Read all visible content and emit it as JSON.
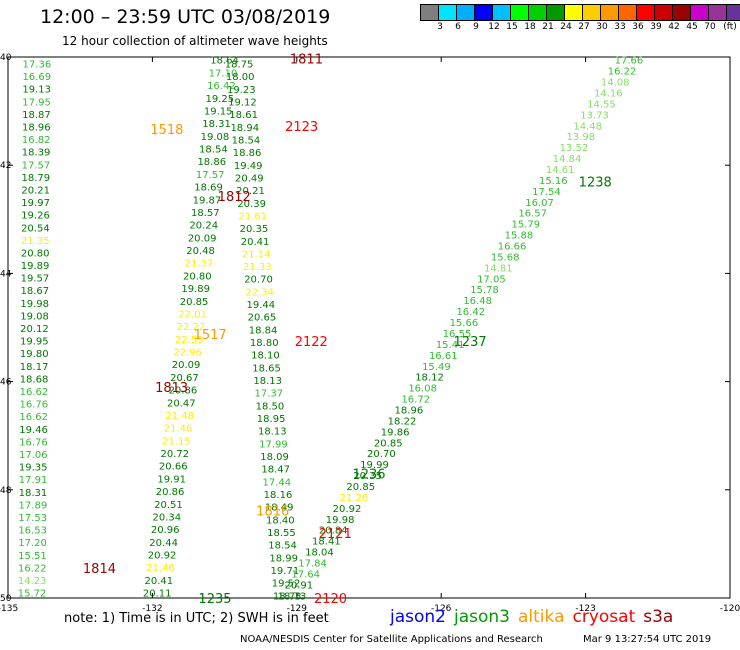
{
  "header": {
    "title": "12:00 – 23:59 UTC 03/08/2019",
    "subtitle": "12 hour collection of altimeter wave heights"
  },
  "colorbar": {
    "unit": "(ft)",
    "swatches": [
      "#7f7f7f",
      "#00e5ff",
      "#00b0ff",
      "#0000ff",
      "#00bfff",
      "#00ff00",
      "#00d000",
      "#009900",
      "#ffff00",
      "#ffcc00",
      "#ff9900",
      "#ff6600",
      "#ff0000",
      "#cc0000",
      "#990000",
      "#cc00cc",
      "#993399",
      "#663399",
      "#000000"
    ],
    "labels": [
      "3",
      "6",
      "9",
      "12",
      "15",
      "18",
      "21",
      "24",
      "27",
      "30",
      "33",
      "36",
      "39",
      "42",
      "45",
      "70"
    ]
  },
  "map": {
    "lon_ticks": [
      "-135",
      "-132",
      "-129",
      "-126",
      "-123",
      "-120"
    ],
    "lat_ticks": [
      "40",
      "42",
      "44",
      "46",
      "48",
      "50"
    ],
    "lon_range": [
      -135,
      -120
    ],
    "lat_range": [
      40,
      50
    ],
    "colors": {
      "green": "#33bb33",
      "darkgreen": "#007700",
      "lightgreen": "#88dd66",
      "yellow": "#ffee00",
      "orange": "#ff9900",
      "red": "#ff0000",
      "darkred": "#990000"
    },
    "track_labels": [
      {
        "text": "1811",
        "lon": -128.8,
        "lat": 40.03,
        "color": "darkred"
      },
      {
        "text": "1518",
        "lon": -131.7,
        "lat": 41.33,
        "color": "orange"
      },
      {
        "text": "2123",
        "lon": -128.9,
        "lat": 41.28,
        "color": "red"
      },
      {
        "text": "1812",
        "lon": -130.3,
        "lat": 42.57,
        "color": "darkred"
      },
      {
        "text": "1238",
        "lon": -122.8,
        "lat": 42.3,
        "color": "darkgreen"
      },
      {
        "text": "1517",
        "lon": -130.8,
        "lat": 45.12,
        "color": "orange"
      },
      {
        "text": "2122",
        "lon": -128.7,
        "lat": 45.25,
        "color": "red"
      },
      {
        "text": "1237",
        "lon": -125.4,
        "lat": 45.25,
        "color": "darkgreen"
      },
      {
        "text": "1813",
        "lon": -131.6,
        "lat": 46.1,
        "color": "darkred"
      },
      {
        "text": "1236",
        "lon": -127.5,
        "lat": 47.7,
        "color": "darkgreen"
      },
      {
        "text": "1816",
        "lon": -129.5,
        "lat": 48.38,
        "color": "orange"
      },
      {
        "text": "2121",
        "lon": -128.2,
        "lat": 48.8,
        "color": "red"
      },
      {
        "text": "1814",
        "lon": -133.1,
        "lat": 49.45,
        "color": "darkred"
      },
      {
        "text": "1235",
        "lon": -130.7,
        "lat": 50.0,
        "color": "darkgreen"
      },
      {
        "text": "2120",
        "lon": -128.3,
        "lat": 50.0,
        "color": "red"
      }
    ],
    "tracks": [
      {
        "name": "track-1",
        "color": "green",
        "start": [
          -134.4,
          40.12
        ],
        "end": [
          -134.5,
          49.9
        ],
        "values": [
          "17.36",
          "16.69",
          "19.13",
          "17.95",
          "18.87",
          "18.96",
          "16.82",
          "18.39",
          "17.57",
          "18.79",
          "20.21",
          "19.97",
          "19.26",
          "20.54",
          "21.35",
          "20.80",
          "19.89",
          "19.57",
          "18.67",
          "19.98",
          "19.08",
          "20.12",
          "19.95",
          "19.80",
          "18.17",
          "18.68",
          "16.62",
          "16.76",
          "16.62",
          "19.46",
          "16.76",
          "17.06",
          "19.35",
          "17.91",
          "18.31",
          "17.89",
          "17.53",
          "16.53",
          "17.20",
          "15.51",
          "16.22",
          "14.23",
          "15.72"
        ]
      },
      {
        "name": "track-2",
        "color": "green",
        "start": [
          -130.5,
          40.05
        ],
        "end": [
          -131.9,
          49.9
        ],
        "values": [
          "18.64",
          "17.10",
          "16.42",
          "19.25",
          "19.15",
          "18.31",
          "19.08",
          "18.54",
          "18.86",
          "17.57",
          "18.69",
          "19.87",
          "18.57",
          "20.24",
          "20.09",
          "20.48",
          "21.37",
          "20.80",
          "19.89",
          "20.85",
          "22.01",
          "22.22",
          "22.55",
          "22.96",
          "20.09",
          "20.67",
          "20.86",
          "20.47",
          "21.48",
          "21.46",
          "21.15",
          "20.72",
          "20.66",
          "19.91",
          "20.86",
          "20.51",
          "20.34",
          "20.96",
          "20.44",
          "20.92",
          "21.46",
          "20.41",
          "20.11"
        ]
      },
      {
        "name": "track-3",
        "color": "green",
        "start": [
          -130.2,
          40.12
        ],
        "end": [
          -129.2,
          49.95
        ],
        "values": [
          "18.75",
          "18.00",
          "19.23",
          "19.12",
          "18.61",
          "18.94",
          "18.54",
          "18.86",
          "19.49",
          "20.49",
          "20.21",
          "20.39",
          "21.61",
          "20.35",
          "20.41",
          "21.14",
          "21.33",
          "20.70",
          "22.34",
          "19.44",
          "20.65",
          "18.84",
          "18.80",
          "18.10",
          "18.65",
          "18.13",
          "17.37",
          "18.50",
          "18.95",
          "18.13",
          "17.99",
          "18.09",
          "18.47",
          "17.44",
          "18.16",
          "18.49",
          "18.40",
          "18.55",
          "18.54",
          "18.99",
          "19.71",
          "19.52",
          "18.73"
        ]
      },
      {
        "name": "track-4",
        "color": "green",
        "start": [
          -122.1,
          40.05
        ],
        "end": [
          -129.1,
          49.95
        ],
        "values": [
          "17.66",
          "16.22",
          "14.08",
          "14.16",
          "14.55",
          "13.73",
          "14.48",
          "13.98",
          "13.52",
          "14.84",
          "14.61",
          "15.16",
          "17.54",
          "16.07",
          "16.57",
          "15.79",
          "15.88",
          "16.66",
          "15.68",
          "14.81",
          "17.05",
          "15.78",
          "16.48",
          "16.42",
          "15.66",
          "16.55",
          "15.41",
          "16.61",
          "15.49",
          "18.12",
          "16.08",
          "16.72",
          "18.96",
          "18.22",
          "19.86",
          "20.85",
          "20.70",
          "19.99",
          "20.35",
          "20.85",
          "21.26",
          "20.92",
          "19.98",
          "20.84",
          "18.41",
          "18.04",
          "17.84",
          "17.64",
          "20.91",
          "18.73"
        ]
      }
    ]
  },
  "note": "note:  1) Time is in UTC;  2) SWH is in feet",
  "satellites": [
    {
      "label": "jason2",
      "color": "#0000ff"
    },
    {
      "label": "jason3",
      "color": "#009900"
    },
    {
      "label": "altika",
      "color": "#ff9900"
    },
    {
      "label": "cryosat",
      "color": "#ff0000"
    },
    {
      "label": "s3a",
      "color": "#990000"
    }
  ],
  "footer": {
    "agency": "NOAA/NESDIS Center for Satellite Applications and Research",
    "timestamp": "Mar  9 13:27:54 UTC 2019"
  }
}
